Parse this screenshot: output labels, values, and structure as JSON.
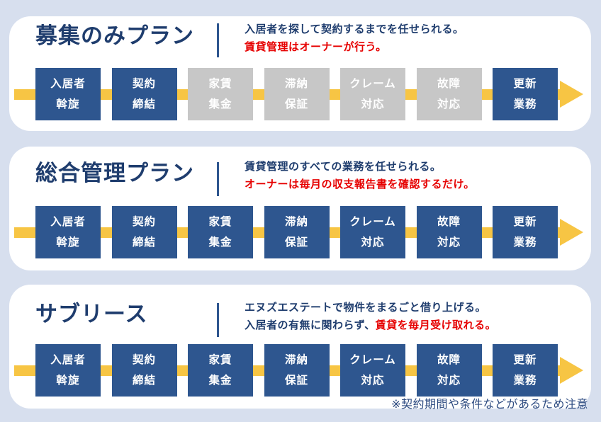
{
  "page": {
    "footnote": "※契約期間や条件などがあるため注意"
  },
  "colors": {
    "page_background": "#d7dfee",
    "card_background": "#ffffff",
    "active_step_blue": "#2e568f",
    "inactive_step_gray": "#c7c7c7",
    "arrow_yellow": "#f7c544",
    "heading_navy": "#1f3d6e",
    "accent_red": "#e60000"
  },
  "plans": [
    {
      "title": "募集のみプラン",
      "description_line1": "入居者を探して契約するまでを任せられる。",
      "description_line2_normal": "",
      "description_line2_red": "賃貸管理はオーナーが行う。",
      "steps": [
        {
          "line1": "入居者",
          "line2": "斡旋",
          "state": "active"
        },
        {
          "line1": "契約",
          "line2": "締結",
          "state": "active"
        },
        {
          "line1": "家賃",
          "line2": "集金",
          "state": "inactive"
        },
        {
          "line1": "滞納",
          "line2": "保証",
          "state": "inactive"
        },
        {
          "line1": "クレーム",
          "line2": "対応",
          "state": "inactive"
        },
        {
          "line1": "故障",
          "line2": "対応",
          "state": "inactive"
        },
        {
          "line1": "更新",
          "line2": "業務",
          "state": "active"
        }
      ]
    },
    {
      "title": "総合管理プラン",
      "description_line1": "賃貸管理のすべての業務を任せられる。",
      "description_line2_normal": "",
      "description_line2_red": "オーナーは毎月の収支報告書を確認するだけ。",
      "steps": [
        {
          "line1": "入居者",
          "line2": "斡旋",
          "state": "active"
        },
        {
          "line1": "契約",
          "line2": "締結",
          "state": "active"
        },
        {
          "line1": "家賃",
          "line2": "集金",
          "state": "active"
        },
        {
          "line1": "滞納",
          "line2": "保証",
          "state": "active"
        },
        {
          "line1": "クレーム",
          "line2": "対応",
          "state": "active"
        },
        {
          "line1": "故障",
          "line2": "対応",
          "state": "active"
        },
        {
          "line1": "更新",
          "line2": "業務",
          "state": "active"
        }
      ]
    },
    {
      "title": "サブリース",
      "description_line1": "エヌズエステートで物件をまるごと借り上げる。",
      "description_line2_normal": "入居者の有無に関わらず、",
      "description_line2_red": "賃貸を毎月受け取れる。",
      "steps": [
        {
          "line1": "入居者",
          "line2": "斡旋",
          "state": "active"
        },
        {
          "line1": "契約",
          "line2": "締結",
          "state": "active"
        },
        {
          "line1": "家賃",
          "line2": "集金",
          "state": "active"
        },
        {
          "line1": "滞納",
          "line2": "保証",
          "state": "active"
        },
        {
          "line1": "クレーム",
          "line2": "対応",
          "state": "active"
        },
        {
          "line1": "故障",
          "line2": "対応",
          "state": "active"
        },
        {
          "line1": "更新",
          "line2": "業務",
          "state": "active"
        }
      ]
    }
  ]
}
